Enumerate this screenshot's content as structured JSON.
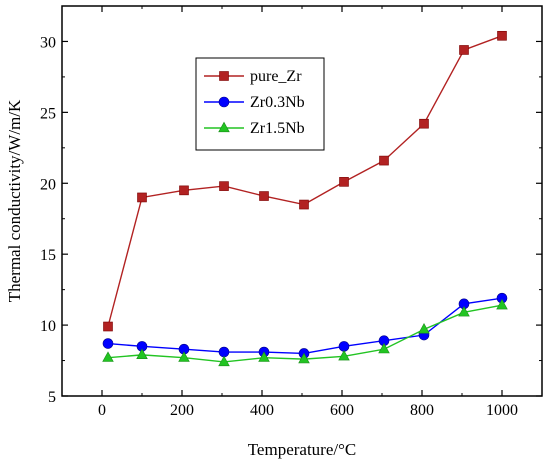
{
  "chart_data": {
    "type": "line",
    "xlabel": "Temperature/°C",
    "ylabel": "Thermal conductivity/W/m/K",
    "xlim": [
      -100,
      1100
    ],
    "ylim": [
      5,
      32.5
    ],
    "x_ticks": [
      0,
      200,
      400,
      600,
      800,
      1000
    ],
    "y_ticks": [
      5,
      10,
      15,
      20,
      25,
      30
    ],
    "grid": false,
    "legend_position": "top-center",
    "series": [
      {
        "name": "pure_Zr",
        "color": "#b22222",
        "marker": "square",
        "x": [
          15,
          100,
          205,
          305,
          405,
          505,
          605,
          705,
          805,
          905,
          1000
        ],
        "y": [
          9.9,
          19.0,
          19.5,
          19.8,
          19.1,
          18.5,
          20.1,
          21.6,
          24.2,
          29.4,
          30.4
        ]
      },
      {
        "name": "Zr0.3Nb",
        "color": "#0000ff",
        "marker": "circle",
        "x": [
          15,
          100,
          205,
          305,
          405,
          505,
          605,
          705,
          805,
          905,
          1000
        ],
        "y": [
          8.7,
          8.5,
          8.3,
          8.1,
          8.1,
          8.0,
          8.5,
          8.9,
          9.3,
          11.5,
          11.9
        ]
      },
      {
        "name": "Zr1.5Nb",
        "color": "#22c422",
        "marker": "triangle",
        "x": [
          15,
          100,
          205,
          305,
          405,
          505,
          605,
          705,
          805,
          905,
          1000
        ],
        "y": [
          7.7,
          7.9,
          7.7,
          7.4,
          7.7,
          7.6,
          7.8,
          8.3,
          9.7,
          10.9,
          11.4
        ]
      }
    ]
  }
}
